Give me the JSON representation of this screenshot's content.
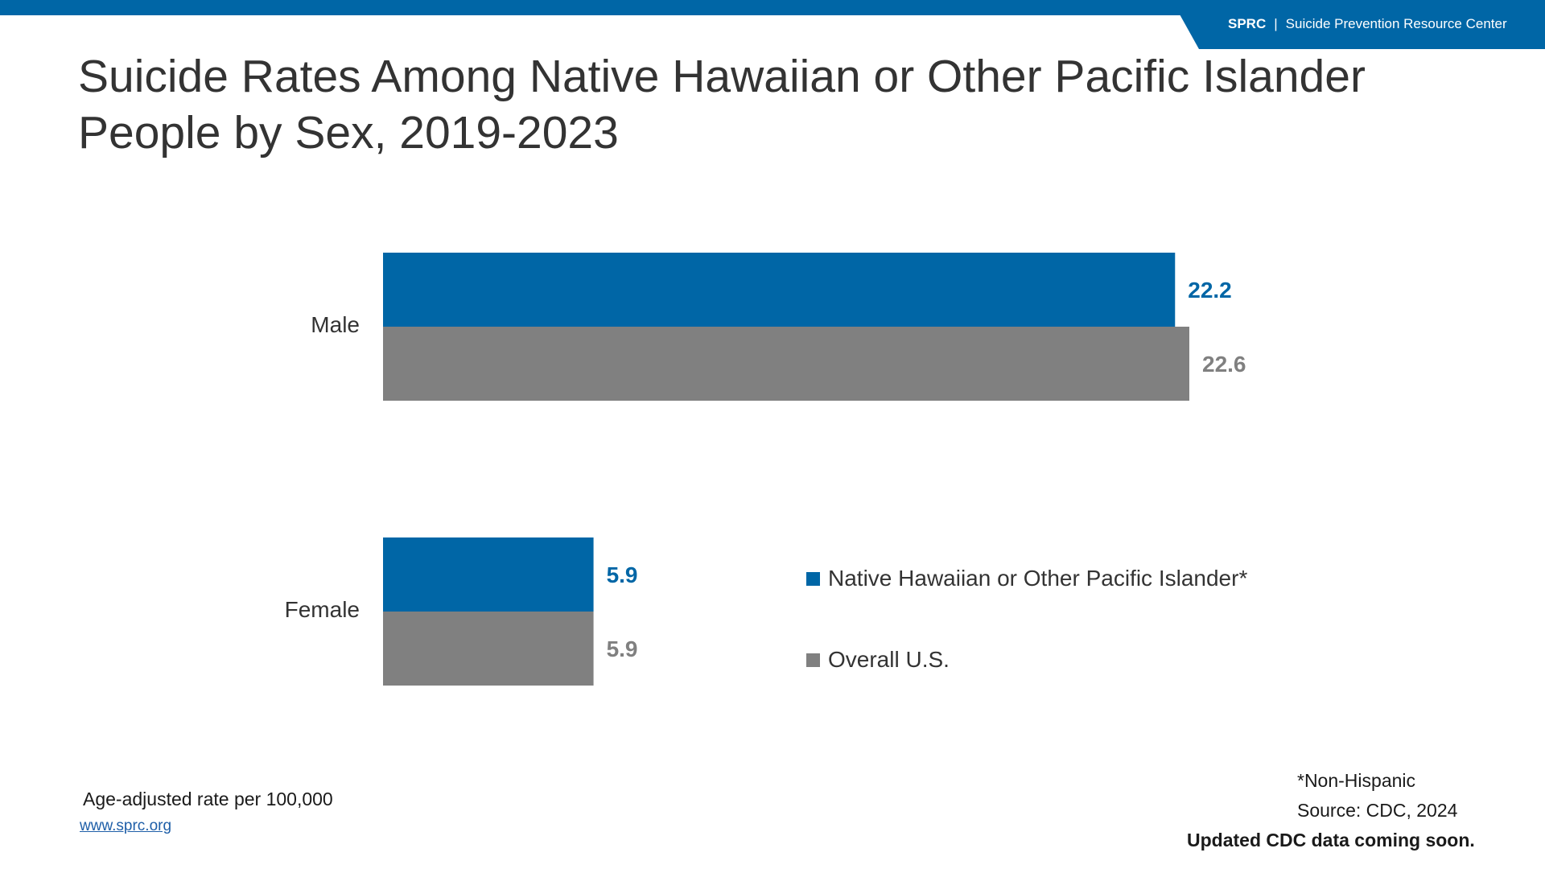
{
  "header": {
    "org_abbr": "SPRC",
    "separator": "|",
    "org_name": "Suicide Prevention Resource Center"
  },
  "colors": {
    "brand_blue": "#0066a6",
    "series_gray": "#808080",
    "background": "#ffffff"
  },
  "chart_data": {
    "type": "bar",
    "orientation": "horizontal",
    "title": "Suicide Rates Among Native Hawaiian or Other Pacific Islander People by Sex, 2019-2023",
    "categories": [
      "Male",
      "Female"
    ],
    "series": [
      {
        "name": "Native Hawaiian or Other Pacific Islander*",
        "values": [
          22.2,
          5.9
        ],
        "color": "#0066a6"
      },
      {
        "name": "Overall U.S.",
        "values": [
          22.6,
          5.9
        ],
        "color": "#808080"
      }
    ],
    "value_labels": {
      "male_nhpi": "22.2",
      "male_us": "22.6",
      "female_nhpi": "5.9",
      "female_us": "5.9"
    },
    "xlim": [
      0,
      22.6
    ],
    "grid": false,
    "legend_position": "right"
  },
  "notes": {
    "rate_note": "Age-adjusted rate per 100,000",
    "website": "www.sprc.org",
    "footnote": "*Non-Hispanic",
    "source": "Source: CDC, 2024",
    "update": "Updated CDC data coming soon."
  }
}
